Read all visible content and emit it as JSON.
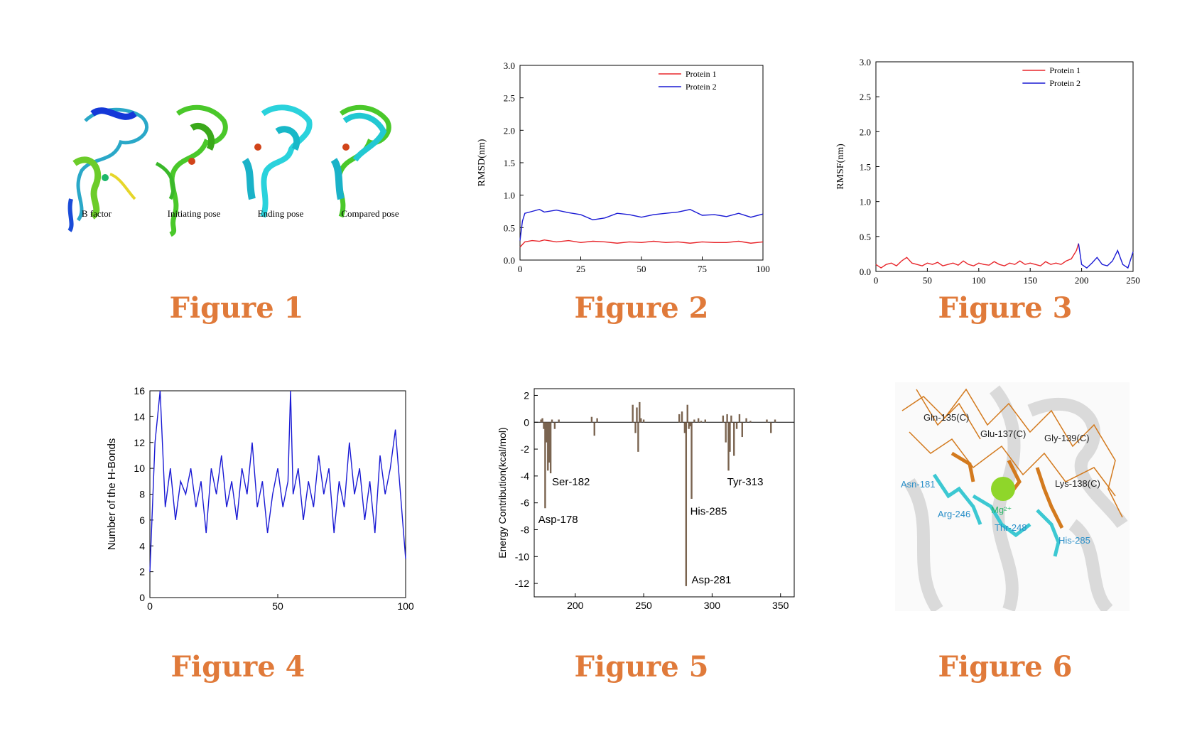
{
  "figure_captions": [
    "Figure 1",
    "Figure 2",
    "Figure 3",
    "Figure 4",
    "Figure 5",
    "Figure 6"
  ],
  "figure1": {
    "labels": [
      "B factor",
      "Initiating pose",
      "Ending pose",
      "Compared pose"
    ]
  },
  "figure6": {
    "labels": [
      "Gln-135(C)",
      "Glu-137(C)",
      "Gly-139(C)",
      "Asn-181",
      "Lys-138(C)",
      "Arg-246",
      "Mg²⁺",
      "Thr-248",
      "His-285"
    ]
  },
  "chart_data": [
    {
      "id": "figure2",
      "type": "line",
      "ylabel": "RMSD(nm)",
      "xlabel": "",
      "xlim": [
        0,
        100
      ],
      "ylim": [
        0,
        3.0
      ],
      "xticks": [
        0,
        25,
        50,
        75,
        100
      ],
      "yticks": [
        0.0,
        0.5,
        1.0,
        1.5,
        2.0,
        2.5,
        3.0
      ],
      "xtick_labels": [
        "0",
        "25",
        "50",
        "75",
        "100"
      ],
      "ytick_labels": [
        "0.0",
        "0.5",
        "1.0",
        "1.5",
        "2.0",
        "2.5",
        "3.0"
      ],
      "legend": [
        "Protein 1",
        "Protein 2"
      ],
      "legend_position": "top-right",
      "series": [
        {
          "name": "Protein 1",
          "color": "#e8262b",
          "x": [
            0,
            2,
            5,
            8,
            10,
            15,
            20,
            25,
            30,
            35,
            40,
            45,
            50,
            55,
            60,
            65,
            70,
            75,
            80,
            85,
            90,
            95,
            100
          ],
          "y": [
            0.2,
            0.28,
            0.3,
            0.29,
            0.31,
            0.28,
            0.3,
            0.27,
            0.29,
            0.28,
            0.26,
            0.28,
            0.27,
            0.29,
            0.27,
            0.28,
            0.26,
            0.28,
            0.27,
            0.27,
            0.29,
            0.26,
            0.28
          ]
        },
        {
          "name": "Protein 2",
          "color": "#1a1ad4",
          "x": [
            0,
            1,
            2,
            5,
            8,
            10,
            15,
            20,
            25,
            30,
            35,
            40,
            45,
            50,
            55,
            60,
            65,
            70,
            75,
            80,
            85,
            90,
            95,
            100
          ],
          "y": [
            0.3,
            0.6,
            0.72,
            0.75,
            0.78,
            0.74,
            0.77,
            0.73,
            0.7,
            0.62,
            0.65,
            0.72,
            0.7,
            0.66,
            0.7,
            0.72,
            0.74,
            0.78,
            0.69,
            0.7,
            0.67,
            0.72,
            0.66,
            0.71
          ]
        }
      ]
    },
    {
      "id": "figure3",
      "type": "line",
      "ylabel": "RMSF(nm)",
      "xlabel": "",
      "xlim": [
        0,
        250
      ],
      "ylim": [
        0,
        3.0
      ],
      "xticks": [
        0,
        50,
        100,
        150,
        200,
        250
      ],
      "yticks": [
        0.0,
        0.5,
        1.0,
        1.5,
        2.0,
        2.5,
        3.0
      ],
      "xtick_labels": [
        "0",
        "50",
        "100",
        "150",
        "200",
        "250"
      ],
      "ytick_labels": [
        "0.0",
        "0.5",
        "1.0",
        "1.5",
        "2.0",
        "2.5",
        "3.0"
      ],
      "legend": [
        "Protein 1",
        "Protein 2"
      ],
      "legend_position": "top-right",
      "series": [
        {
          "name": "Protein 1",
          "color": "#e8262b",
          "x": [
            0,
            5,
            10,
            15,
            20,
            25,
            30,
            35,
            40,
            45,
            50,
            55,
            60,
            65,
            70,
            75,
            80,
            85,
            90,
            95,
            100,
            105,
            110,
            115,
            120,
            125,
            130,
            135,
            140,
            145,
            150,
            155,
            160,
            165,
            170,
            175,
            180,
            185,
            190,
            195,
            197
          ],
          "y": [
            0.1,
            0.05,
            0.1,
            0.12,
            0.08,
            0.15,
            0.2,
            0.12,
            0.1,
            0.08,
            0.12,
            0.1,
            0.13,
            0.08,
            0.1,
            0.12,
            0.09,
            0.15,
            0.1,
            0.08,
            0.12,
            0.1,
            0.09,
            0.14,
            0.1,
            0.08,
            0.12,
            0.1,
            0.15,
            0.1,
            0.12,
            0.1,
            0.08,
            0.14,
            0.1,
            0.12,
            0.1,
            0.15,
            0.18,
            0.3,
            0.4
          ]
        },
        {
          "name": "Protein 2",
          "color": "#1a1ad4",
          "x": [
            197,
            200,
            205,
            210,
            215,
            220,
            225,
            230,
            235,
            240,
            245,
            250
          ],
          "y": [
            0.4,
            0.1,
            0.05,
            0.12,
            0.2,
            0.1,
            0.08,
            0.15,
            0.3,
            0.1,
            0.05,
            0.28
          ]
        }
      ]
    },
    {
      "id": "figure4",
      "type": "line",
      "ylabel": "Number of the H-Bonds",
      "xlabel": "",
      "xlim": [
        0,
        100
      ],
      "ylim": [
        0,
        16
      ],
      "xticks": [
        0,
        50,
        100
      ],
      "yticks": [
        0,
        2,
        4,
        6,
        8,
        10,
        12,
        14,
        16
      ],
      "xtick_labels": [
        "0",
        "50",
        "100"
      ],
      "ytick_labels": [
        "0",
        "2",
        "4",
        "6",
        "8",
        "10",
        "12",
        "14",
        "16"
      ],
      "series": [
        {
          "name": "H-Bonds",
          "color": "#1a1ad4",
          "x": [
            0,
            2,
            4,
            6,
            8,
            10,
            12,
            14,
            16,
            18,
            20,
            22,
            24,
            26,
            28,
            30,
            32,
            34,
            36,
            38,
            40,
            42,
            44,
            46,
            48,
            50,
            52,
            54,
            55,
            56,
            58,
            60,
            62,
            64,
            66,
            68,
            70,
            72,
            74,
            76,
            78,
            80,
            82,
            84,
            86,
            88,
            90,
            92,
            94,
            96,
            98,
            100
          ],
          "y": [
            2,
            12,
            16,
            7,
            10,
            6,
            9,
            8,
            10,
            7,
            9,
            5,
            10,
            8,
            11,
            7,
            9,
            6,
            10,
            8,
            12,
            7,
            9,
            5,
            8,
            10,
            7,
            9,
            16,
            8,
            10,
            6,
            9,
            7,
            11,
            8,
            10,
            5,
            9,
            7,
            12,
            8,
            10,
            6,
            9,
            5,
            11,
            8,
            10,
            13,
            8,
            3
          ]
        }
      ]
    },
    {
      "id": "figure5",
      "type": "bar",
      "ylabel": "Energy Contribution(kcal/mol)",
      "xlabel": "",
      "xlim": [
        170,
        360
      ],
      "ylim": [
        -13,
        2.5
      ],
      "xticks": [
        200,
        250,
        300,
        350
      ],
      "yticks": [
        2,
        0,
        -2,
        -4,
        -6,
        -8,
        -10,
        -12
      ],
      "xtick_labels": [
        "200",
        "250",
        "300",
        "350"
      ],
      "ytick_labels": [
        "2",
        "0",
        "-2",
        "-4",
        "-6",
        "-8",
        "-10",
        "-12"
      ],
      "annotations": [
        "Ser-182",
        "Asp-178",
        "His-285",
        "Tyr-313",
        "Asp-281"
      ],
      "residues": [
        175,
        176,
        177,
        178,
        179,
        180,
        181,
        182,
        183,
        185,
        188,
        212,
        214,
        216,
        242,
        244,
        245,
        246,
        247,
        248,
        250,
        276,
        278,
        280,
        281,
        282,
        283,
        284,
        285,
        287,
        290,
        292,
        295,
        308,
        310,
        311,
        312,
        313,
        314,
        316,
        318,
        320,
        322,
        325,
        328,
        340,
        343,
        346
      ],
      "values": [
        0.2,
        0.3,
        -0.5,
        -6.4,
        -1.5,
        -3.6,
        -3.0,
        -3.8,
        0.2,
        -0.5,
        0.2,
        0.4,
        -1.0,
        0.3,
        1.3,
        -0.8,
        1.1,
        -2.2,
        1.5,
        0.3,
        0.2,
        0.6,
        0.8,
        -0.8,
        -12.2,
        1.3,
        -0.5,
        -0.3,
        -5.7,
        0.2,
        0.3,
        0.1,
        0.2,
        0.5,
        -1.5,
        0.6,
        -3.6,
        -2.2,
        0.5,
        -2.5,
        -0.5,
        0.6,
        -1.1,
        0.3,
        0.1,
        0.2,
        -0.8,
        0.2
      ]
    }
  ]
}
